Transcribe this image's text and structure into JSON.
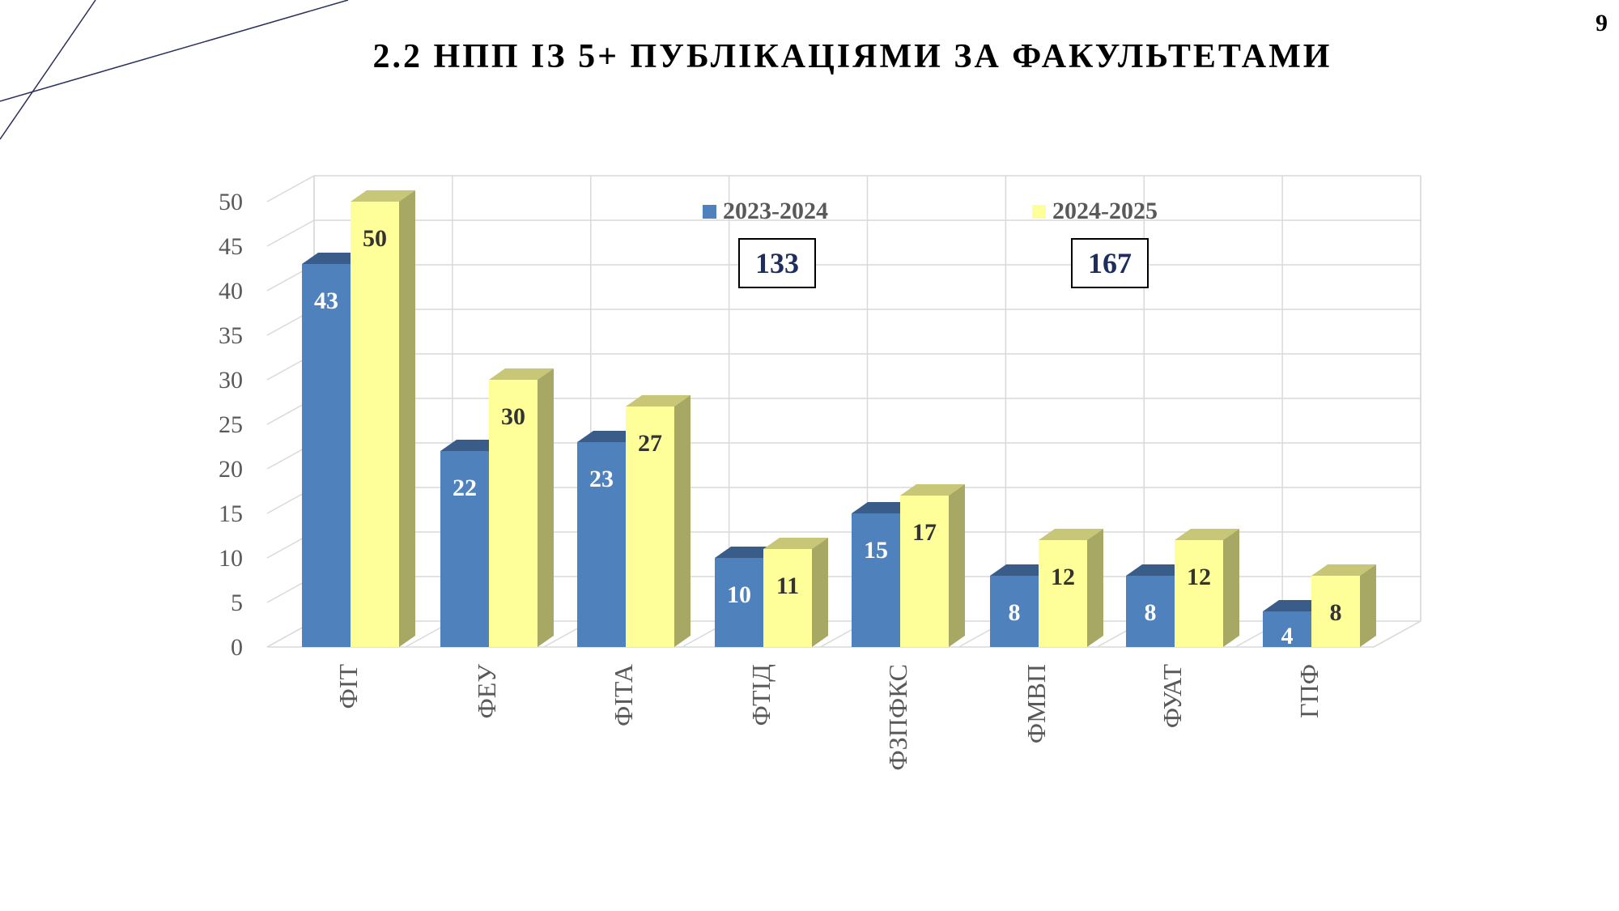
{
  "page": {
    "number": "9",
    "title": "2.2 НПП ІЗ 5+ ПУБЛІКАЦІЯМИ ЗА ФАКУЛЬТЕТАМИ"
  },
  "totals": {
    "series_2023_2024": "133",
    "series_2024_2025": "167"
  },
  "chart_data": {
    "type": "bar",
    "title": "2.2 НПП ІЗ 5+ ПУБЛІКАЦІЯМИ ЗА ФАКУЛЬТЕТАМИ",
    "xlabel": "",
    "ylabel": "",
    "categories": [
      "ФІТ",
      "ФЕУ",
      "ФІТА",
      "ФТІД",
      "ФЗПФКС",
      "ФМВП",
      "ФУАТ",
      "ГПФ"
    ],
    "series": [
      {
        "name": "2023-2024",
        "values": [
          43,
          22,
          23,
          10,
          15,
          8,
          8,
          4
        ],
        "color": "#4f81bd"
      },
      {
        "name": "2024-2025",
        "values": [
          50,
          30,
          27,
          11,
          17,
          12,
          12,
          8
        ],
        "color": "#ffff99"
      }
    ],
    "yticks": [
      "0",
      "5",
      "10",
      "15",
      "20",
      "25",
      "30",
      "35",
      "40",
      "45",
      "50"
    ],
    "ylim": [
      0,
      50
    ],
    "grid": true,
    "legend_position": "top",
    "bar_style": "3d-columns"
  }
}
